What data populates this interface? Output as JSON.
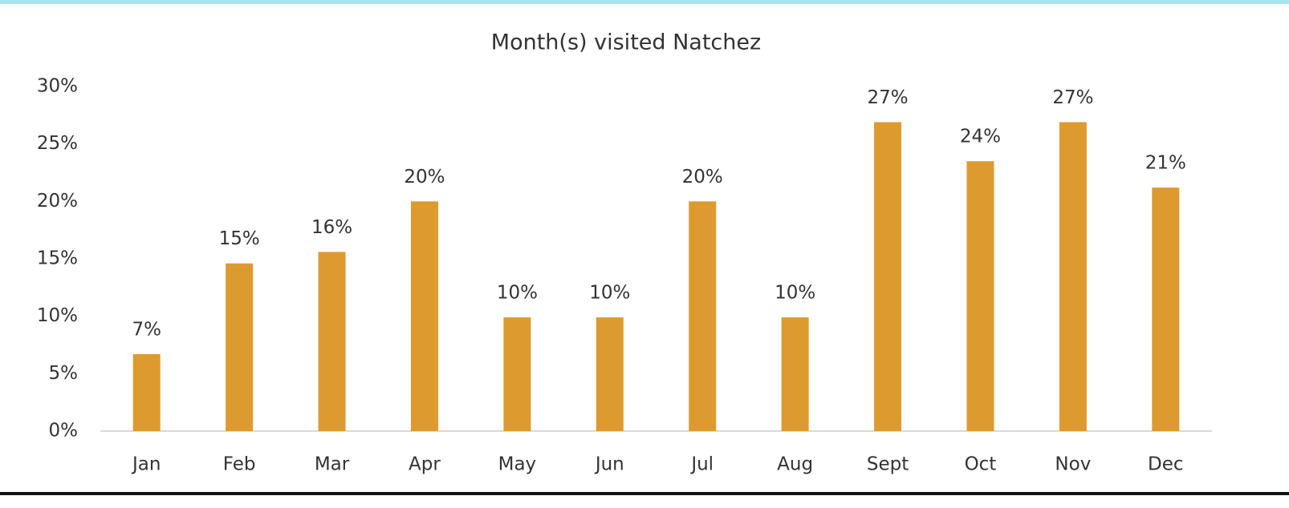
{
  "chart_data": {
    "type": "bar",
    "title": "Month(s) visited Natchez",
    "categories": [
      "Jan",
      "Feb",
      "Mar",
      "Apr",
      "May",
      "Jun",
      "Jul",
      "Aug",
      "Sept",
      "Oct",
      "Nov",
      "Dec"
    ],
    "values": [
      6.7,
      14.6,
      15.6,
      20,
      9.9,
      9.9,
      20,
      9.9,
      26.9,
      23.5,
      26.9,
      21.2
    ],
    "value_labels": [
      "7%",
      "15%",
      "16%",
      "20%",
      "10%",
      "10%",
      "20%",
      "10%",
      "27%",
      "24%",
      "27%",
      "21%"
    ],
    "color": "#dd9b2f",
    "ylim": [
      0,
      30
    ],
    "yticks": [
      {
        "value": 0,
        "label": "0%"
      },
      {
        "value": 5,
        "label": "5%"
      },
      {
        "value": 10,
        "label": "10%"
      },
      {
        "value": 15,
        "label": "15%"
      },
      {
        "value": 20,
        "label": "20%"
      },
      {
        "value": 25,
        "label": "25%"
      },
      {
        "value": 30,
        "label": "30%"
      }
    ],
    "grid": false
  }
}
